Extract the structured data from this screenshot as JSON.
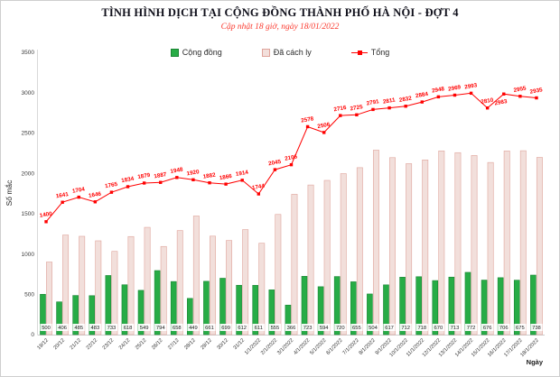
{
  "header": {
    "title": "TÌNH HÌNH DỊCH TẠI CỘNG ĐỒNG THÀNH PHỐ HÀ NỘI - ĐỢT 4",
    "subtitle": "Cập nhật 18 giờ, ngày 18/01/2022"
  },
  "legend": [
    {
      "label": "Cộng đồng"
    },
    {
      "label": "Đã cách ly"
    },
    {
      "label": "Tổng"
    }
  ],
  "colors": {
    "community_fill": "#27ac46",
    "community_border": "#1b8534",
    "quarantined_fill": "#f2dfdb",
    "quarantined_border": "#dfa49b",
    "total_line": "#ff0000",
    "subtitle_text": "#fa3b30",
    "axis_text": "#3a3a3a"
  },
  "chart_data": {
    "type": "bar",
    "title": "TÌNH HÌNH DỊCH TẠI CỘNG ĐỒNG THÀNH PHỐ HÀ NỘI - ĐỢT 4",
    "subtitle": "Cập nhật 18 giờ, ngày 18/01/2022",
    "xlabel": "Ngày",
    "ylabel": "Số mắc",
    "ylim": [
      0,
      3500
    ],
    "yticks": [
      0,
      500,
      1000,
      1500,
      2000,
      2500,
      3000,
      3500
    ],
    "grid": false,
    "legend_position": "top",
    "categories": [
      "19/12",
      "20/12",
      "21/12",
      "22/12",
      "23/12",
      "24/12",
      "25/12",
      "26/12",
      "27/12",
      "28/12",
      "29/12",
      "30/12",
      "31/12",
      "1/1/2022",
      "2/1/2022",
      "3/1/2022",
      "4/1/2022",
      "5/1/2022",
      "6/1/2022",
      "7/1/2022",
      "8/1/2022",
      "9/1/2022",
      "10/1/2022",
      "11/1/2022",
      "12/1/2022",
      "13/1/2022",
      "14/1/2022",
      "15/1/2022",
      "16/1/2022",
      "17/1/2022",
      "18/1/2022"
    ],
    "series": [
      {
        "name": "Cộng đồng",
        "type": "bar",
        "color": "#27ac46",
        "values": [
          500,
          406,
          485,
          483,
          733,
          618,
          549,
          794,
          658,
          449,
          661,
          699,
          612,
          611,
          555,
          366,
          723,
          594,
          720,
          655,
          504,
          617,
          712,
          718,
          670,
          713,
          772,
          676,
          706,
          675,
          738
        ]
      },
      {
        "name": "Đã cách ly",
        "type": "bar",
        "color": "#f2dfdb",
        "values": [
          900,
          1235,
          1219,
          1163,
          1032,
          1216,
          1330,
          1093,
          1290,
          1471,
          1221,
          1167,
          1302,
          1133,
          1490,
          1740,
          1855,
          1912,
          1996,
          2070,
          2287,
          2194,
          2120,
          2166,
          2278,
          2256,
          2221,
          2134,
          2277,
          2280,
          2197
        ]
      },
      {
        "name": "Tổng",
        "type": "line",
        "color": "#ff0000",
        "values": [
          1400,
          1641,
          1704,
          1646,
          1765,
          1834,
          1879,
          1887,
          1948,
          1920,
          1882,
          1866,
          1914,
          1744,
          2045,
          2106,
          2578,
          2506,
          2716,
          2725,
          2791,
          2811,
          2832,
          2884,
          2948,
          2969,
          2993,
          2810,
          2983,
          2955,
          2935
        ]
      }
    ]
  }
}
